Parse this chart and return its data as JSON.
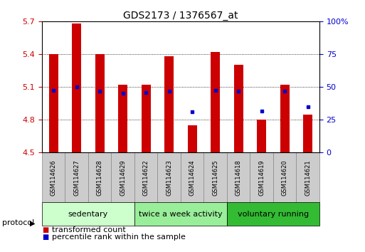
{
  "title": "GDS2173 / 1376567_at",
  "samples": [
    "GSM114626",
    "GSM114627",
    "GSM114628",
    "GSM114629",
    "GSM114622",
    "GSM114623",
    "GSM114624",
    "GSM114625",
    "GSM114618",
    "GSM114619",
    "GSM114620",
    "GSM114621"
  ],
  "bar_bottom": 4.5,
  "bar_tops": [
    5.4,
    5.68,
    5.4,
    5.12,
    5.12,
    5.38,
    4.75,
    5.42,
    5.3,
    4.8,
    5.12,
    4.85
  ],
  "percentile_values": [
    5.07,
    5.1,
    5.06,
    5.04,
    5.05,
    5.06,
    4.87,
    5.07,
    5.06,
    4.88,
    5.06,
    4.92
  ],
  "ylim_left": [
    4.5,
    5.7
  ],
  "ylim_right": [
    0,
    100
  ],
  "yticks_left": [
    4.5,
    4.8,
    5.1,
    5.4,
    5.7
  ],
  "yticks_right": [
    0,
    25,
    50,
    75,
    100
  ],
  "ytick_labels_right": [
    "0",
    "25",
    "50",
    "75",
    "100%"
  ],
  "bar_color": "#cc0000",
  "percentile_color": "#0000cc",
  "groups": [
    {
      "label": "sedentary",
      "start": 0,
      "end": 4,
      "color": "#ccffcc"
    },
    {
      "label": "twice a week activity",
      "start": 4,
      "end": 8,
      "color": "#99ee99"
    },
    {
      "label": "voluntary running",
      "start": 8,
      "end": 12,
      "color": "#33bb33"
    }
  ],
  "protocol_label": "protocol",
  "legend_items": [
    {
      "label": "transformed count",
      "color": "#cc0000"
    },
    {
      "label": "percentile rank within the sample",
      "color": "#0000cc"
    }
  ],
  "title_fontsize": 10,
  "tick_fontsize": 8,
  "sample_fontsize": 6,
  "group_fontsize": 8,
  "legend_fontsize": 8,
  "bar_width": 0.4,
  "sample_box_color": "#cccccc",
  "sample_box_edge": "#888888"
}
